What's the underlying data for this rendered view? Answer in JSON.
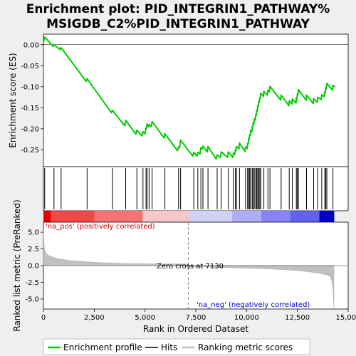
{
  "chart_data": {
    "type": "line",
    "title_line1": "Enrichment plot: PID_INTEGRIN1_PATHWAY%",
    "title_line2": "MSIGDB_C2%PID_INTEGRIN1_PATHWAY",
    "es_ylabel": "Enrichment score (ES)",
    "rank_ylabel": "Ranked list metric (PreRanked)",
    "xlabel": "Rank in Ordered Dataset",
    "x_ticks": [
      0,
      2500,
      5000,
      7500,
      10000,
      12500,
      15000
    ],
    "x_tick_labels": [
      "0",
      "2,500",
      "5,000",
      "7,500",
      "10,000",
      "12,500",
      "15,000"
    ],
    "xlim": [
      0,
      15000
    ],
    "es_ylim": [
      -0.29,
      0.025
    ],
    "es_ticks": [
      0.0,
      -0.05,
      -0.1,
      -0.15,
      -0.2,
      -0.25
    ],
    "es_tick_labels": [
      "0.00",
      "-0.05",
      "-0.10",
      "-0.15",
      "-0.20",
      "-0.25"
    ],
    "rank_ylim": [
      -6.5,
      6.5
    ],
    "rank_ticks": [
      5.0,
      2.5,
      0.0,
      -2.5,
      -5.0
    ],
    "rank_tick_labels": [
      "5.0",
      "2.5",
      "0.0",
      "-2.5",
      "-5.0"
    ],
    "hits": [
      60,
      520,
      870,
      2150,
      3400,
      4050,
      4600,
      4900,
      5050,
      5100,
      5200,
      5350,
      5980,
      6650,
      6750,
      7400,
      7600,
      7750,
      7850,
      8100,
      8550,
      8750,
      9100,
      9350,
      9450,
      9500,
      9650,
      9950,
      10050,
      10100,
      10150,
      10200,
      10280,
      10320,
      10380,
      10450,
      10500,
      10550,
      10600,
      10650,
      10700,
      10850,
      11050,
      11150,
      11700,
      12100,
      12250,
      12450,
      12500,
      12550,
      12950,
      13300,
      13500,
      13700,
      13850,
      13900,
      13950,
      14250
    ],
    "es_curve": {
      "x": [
        0,
        60,
        480,
        520,
        830,
        870,
        2100,
        2150,
        3350,
        3400,
        4000,
        4050,
        4550,
        4600,
        4850,
        4900,
        5000,
        5050,
        5070,
        5100,
        5170,
        5200,
        5300,
        5350,
        5940,
        5980,
        6600,
        6650,
        6700,
        6750,
        7350,
        7400,
        7560,
        7600,
        7710,
        7750,
        7810,
        7850,
        8060,
        8100,
        8500,
        8550,
        8710,
        8750,
        9060,
        9100,
        9320,
        9350,
        9420,
        9450,
        9480,
        9500,
        9620,
        9650,
        9920,
        9950,
        10030,
        10050,
        10080,
        10100,
        10130,
        10150,
        10180,
        10200,
        10260,
        10280,
        10300,
        10320,
        10360,
        10380,
        10430,
        10450,
        10480,
        10500,
        10530,
        10550,
        10580,
        10600,
        10630,
        10650,
        10680,
        10700,
        10830,
        10850,
        11030,
        11050,
        11130,
        11150,
        11680,
        11700,
        12080,
        12100,
        12230,
        12250,
        12430,
        12450,
        12480,
        12500,
        12530,
        12550,
        12930,
        12950,
        13280,
        13300,
        13480,
        13500,
        13680,
        13700,
        13830,
        13850,
        13880,
        13900,
        13930,
        13950,
        14230,
        14250,
        14350
      ],
      "y": [
        0.005,
        0.018,
        -0.004,
        0.0,
        -0.012,
        -0.007,
        -0.087,
        -0.081,
        -0.162,
        -0.156,
        -0.193,
        -0.18,
        -0.213,
        -0.203,
        -0.217,
        -0.207,
        -0.212,
        -0.198,
        -0.2,
        -0.188,
        -0.195,
        -0.19,
        -0.195,
        -0.183,
        -0.222,
        -0.212,
        -0.252,
        -0.243,
        -0.245,
        -0.227,
        -0.265,
        -0.256,
        -0.265,
        -0.256,
        -0.26,
        -0.245,
        -0.248,
        -0.241,
        -0.255,
        -0.242,
        -0.272,
        -0.262,
        -0.268,
        -0.255,
        -0.268,
        -0.255,
        -0.268,
        -0.258,
        -0.261,
        -0.25,
        -0.252,
        -0.242,
        -0.248,
        -0.234,
        -0.254,
        -0.243,
        -0.247,
        -0.235,
        -0.236,
        -0.224,
        -0.226,
        -0.214,
        -0.216,
        -0.204,
        -0.207,
        -0.195,
        -0.197,
        -0.186,
        -0.188,
        -0.176,
        -0.178,
        -0.166,
        -0.168,
        -0.156,
        -0.158,
        -0.145,
        -0.147,
        -0.135,
        -0.137,
        -0.125,
        -0.127,
        -0.115,
        -0.123,
        -0.111,
        -0.12,
        -0.108,
        -0.112,
        -0.099,
        -0.132,
        -0.12,
        -0.145,
        -0.133,
        -0.141,
        -0.129,
        -0.139,
        -0.127,
        -0.129,
        -0.117,
        -0.119,
        -0.107,
        -0.132,
        -0.12,
        -0.14,
        -0.128,
        -0.137,
        -0.125,
        -0.131,
        -0.119,
        -0.124,
        -0.112,
        -0.114,
        -0.102,
        -0.104,
        -0.092,
        -0.108,
        -0.097,
        -0.1
      ]
    },
    "es_scale": 0.45,
    "pos_label": "'na_pos' (positively correlated)",
    "neg_label": "'na_neg' (negatively correlated)",
    "zero_cross_label": "Zero cross at 7130",
    "zero_cross": 7130,
    "n_genes": 14300,
    "legend": [
      "Enrichment profile",
      "Hits",
      "Ranking metric scores"
    ],
    "colors": {
      "profile": "#00cc00",
      "hits": "#000000",
      "metric": "#c0c0c0",
      "pos_text": "#cc0000",
      "neg_text": "#0000cc",
      "panel_bg": "#ffffff",
      "page_bg": "#efefef"
    }
  }
}
